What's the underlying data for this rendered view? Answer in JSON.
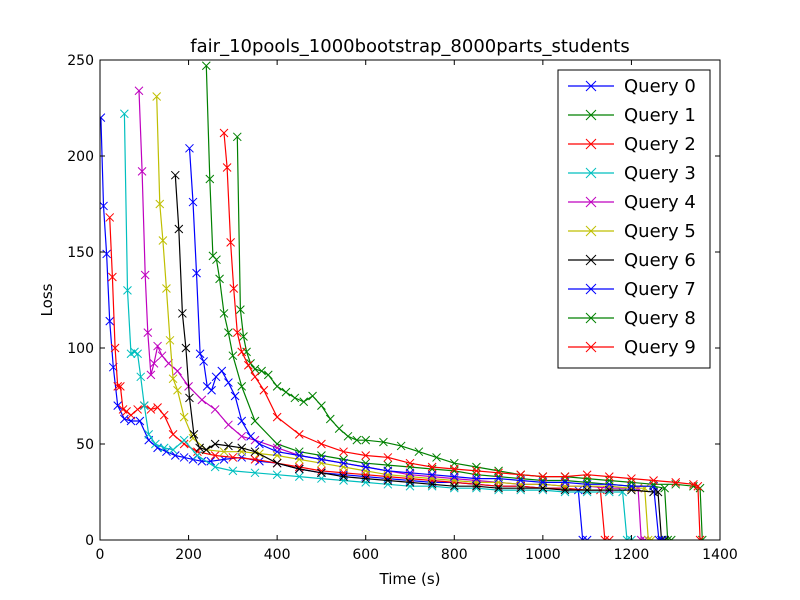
{
  "chart_data": {
    "type": "line",
    "title": "fair_10pools_1000bootstrap_8000parts_students",
    "xlabel": "Time (s)",
    "ylabel": "Loss",
    "xlim": [
      0,
      1400
    ],
    "ylim": [
      0,
      250
    ],
    "xticks": [
      "0",
      "200",
      "400",
      "600",
      "800",
      "1000",
      "1200",
      "1400"
    ],
    "yticks": [
      "0",
      "50",
      "100",
      "150",
      "200",
      "250"
    ],
    "legend_position": "top-right",
    "grid": false,
    "marker": "x",
    "series": [
      {
        "name": "Query 0",
        "color": "#0000ff",
        "x": [
          2,
          8,
          15,
          22,
          30,
          40,
          55,
          70,
          90,
          110,
          130,
          150,
          170,
          190,
          210,
          230,
          250,
          280,
          320,
          360,
          400,
          450,
          500,
          550,
          600,
          650,
          700,
          750,
          800,
          850,
          900,
          950,
          1000,
          1050,
          1080,
          1090,
          1100
        ],
        "y": [
          220,
          174,
          149,
          114,
          90,
          70,
          63,
          62,
          62,
          52,
          48,
          46,
          44,
          43,
          42,
          41,
          41,
          42,
          43,
          41,
          40,
          37,
          35,
          34,
          33,
          32,
          31,
          30,
          30,
          29,
          28,
          28,
          27,
          27,
          26,
          0,
          0
        ]
      },
      {
        "name": "Query 1",
        "color": "#008000",
        "x": [
          240,
          248,
          255,
          263,
          270,
          280,
          290,
          300,
          320,
          350,
          400,
          450,
          500,
          550,
          600,
          650,
          700,
          750,
          800,
          850,
          900,
          950,
          1000,
          1050,
          1100,
          1150,
          1200,
          1250,
          1275,
          1282,
          1290
        ],
        "y": [
          247,
          188,
          148,
          146,
          136,
          118,
          108,
          96,
          80,
          62,
          50,
          46,
          44,
          42,
          40,
          39,
          38,
          37,
          36,
          34,
          33,
          32,
          31,
          31,
          30,
          29,
          28,
          28,
          27,
          0,
          0
        ]
      },
      {
        "name": "Query 2",
        "color": "#ff0000",
        "x": [
          22,
          28,
          34,
          40,
          46,
          52,
          60,
          70,
          85,
          100,
          115,
          130,
          145,
          165,
          190,
          220,
          260,
          300,
          350,
          400,
          450,
          500,
          550,
          600,
          650,
          700,
          750,
          800,
          850,
          900,
          950,
          1000,
          1050,
          1100,
          1130,
          1140,
          1150
        ],
        "y": [
          168,
          137,
          100,
          80,
          80,
          68,
          67,
          65,
          68,
          70,
          68,
          69,
          65,
          55,
          50,
          46,
          44,
          43,
          42,
          40,
          38,
          36,
          35,
          34,
          33,
          32,
          31,
          30,
          29,
          28,
          28,
          27,
          27,
          26,
          26,
          0,
          0
        ]
      },
      {
        "name": "Query 3",
        "color": "#00bfbf",
        "x": [
          55,
          62,
          70,
          78,
          85,
          92,
          100,
          110,
          125,
          145,
          165,
          190,
          220,
          260,
          300,
          350,
          400,
          450,
          500,
          550,
          600,
          650,
          700,
          750,
          800,
          850,
          900,
          950,
          1000,
          1050,
          1100,
          1150,
          1180,
          1190,
          1200
        ],
        "y": [
          222,
          130,
          97,
          98,
          97,
          85,
          70,
          55,
          50,
          48,
          47,
          52,
          44,
          38,
          36,
          35,
          34,
          33,
          32,
          31,
          30,
          29,
          28,
          28,
          27,
          27,
          26,
          26,
          26,
          25,
          25,
          25,
          25,
          0,
          0
        ]
      },
      {
        "name": "Query 4",
        "color": "#bf00bf",
        "x": [
          88,
          95,
          102,
          108,
          115,
          122,
          130,
          140,
          155,
          175,
          200,
          230,
          260,
          290,
          320,
          350,
          400,
          450,
          500,
          550,
          600,
          650,
          700,
          750,
          800,
          850,
          900,
          950,
          1000,
          1050,
          1100,
          1150,
          1200,
          1215,
          1222,
          1230
        ],
        "y": [
          234,
          192,
          138,
          108,
          86,
          92,
          101,
          96,
          92,
          88,
          80,
          73,
          68,
          60,
          54,
          52,
          48,
          44,
          42,
          40,
          38,
          36,
          34,
          33,
          32,
          31,
          30,
          29,
          29,
          28,
          28,
          27,
          27,
          27,
          0,
          0
        ]
      },
      {
        "name": "Query 5",
        "color": "#bfbf00",
        "x": [
          128,
          135,
          142,
          150,
          158,
          165,
          175,
          190,
          210,
          240,
          280,
          320,
          360,
          400,
          450,
          500,
          550,
          600,
          650,
          700,
          750,
          800,
          850,
          900,
          950,
          1000,
          1050,
          1100,
          1150,
          1200,
          1230,
          1238,
          1245
        ],
        "y": [
          231,
          175,
          156,
          131,
          104,
          84,
          78,
          64,
          53,
          47,
          46,
          46,
          45,
          44,
          42,
          40,
          38,
          36,
          34,
          33,
          32,
          31,
          30,
          30,
          29,
          29,
          28,
          28,
          28,
          27,
          27,
          0,
          0
        ]
      },
      {
        "name": "Query 6",
        "color": "#000000",
        "x": [
          170,
          178,
          186,
          194,
          202,
          212,
          225,
          240,
          260,
          290,
          320,
          350,
          400,
          450,
          500,
          550,
          600,
          650,
          700,
          750,
          800,
          850,
          900,
          950,
          1000,
          1050,
          1100,
          1150,
          1200,
          1250,
          1260,
          1268,
          1275
        ],
        "y": [
          190,
          162,
          118,
          100,
          74,
          55,
          48,
          47,
          50,
          49,
          48,
          46,
          40,
          37,
          35,
          33,
          32,
          31,
          30,
          29,
          28,
          28,
          27,
          27,
          27,
          26,
          26,
          26,
          26,
          25,
          25,
          0,
          0
        ]
      },
      {
        "name": "Query 7",
        "color": "#0000ff",
        "x": [
          202,
          210,
          218,
          226,
          234,
          242,
          252,
          262,
          275,
          290,
          305,
          320,
          340,
          360,
          400,
          450,
          500,
          550,
          600,
          650,
          700,
          750,
          800,
          850,
          900,
          950,
          1000,
          1050,
          1100,
          1150,
          1200,
          1250,
          1262,
          1270
        ],
        "y": [
          204,
          176,
          139,
          97,
          93,
          80,
          78,
          85,
          88,
          82,
          75,
          62,
          54,
          50,
          46,
          44,
          42,
          40,
          38,
          36,
          35,
          34,
          33,
          32,
          32,
          31,
          30,
          30,
          29,
          29,
          28,
          28,
          0,
          0
        ]
      },
      {
        "name": "Query 8",
        "color": "#008000",
        "x": [
          310,
          317,
          324,
          331,
          340,
          350,
          365,
          380,
          400,
          420,
          440,
          460,
          480,
          500,
          520,
          540,
          560,
          580,
          600,
          640,
          680,
          720,
          760,
          800,
          850,
          900,
          950,
          1000,
          1050,
          1100,
          1150,
          1200,
          1250,
          1300,
          1340,
          1355,
          1360
        ],
        "y": [
          210,
          120,
          106,
          98,
          92,
          89,
          88,
          86,
          80,
          77,
          74,
          72,
          75,
          70,
          63,
          58,
          54,
          52,
          52,
          51,
          49,
          46,
          43,
          40,
          38,
          36,
          34,
          33,
          33,
          32,
          31,
          30,
          29,
          29,
          28,
          27,
          0
        ]
      },
      {
        "name": "Query 9",
        "color": "#ff0000",
        "x": [
          280,
          287,
          295,
          302,
          310,
          320,
          335,
          350,
          370,
          400,
          450,
          500,
          550,
          600,
          650,
          700,
          750,
          800,
          850,
          900,
          950,
          1000,
          1050,
          1100,
          1150,
          1200,
          1250,
          1300,
          1340,
          1350,
          1355
        ],
        "y": [
          212,
          194,
          155,
          131,
          108,
          98,
          91,
          85,
          78,
          64,
          55,
          50,
          46,
          44,
          43,
          40,
          38,
          37,
          36,
          35,
          34,
          33,
          33,
          34,
          33,
          32,
          31,
          30,
          29,
          28,
          0
        ]
      }
    ]
  }
}
